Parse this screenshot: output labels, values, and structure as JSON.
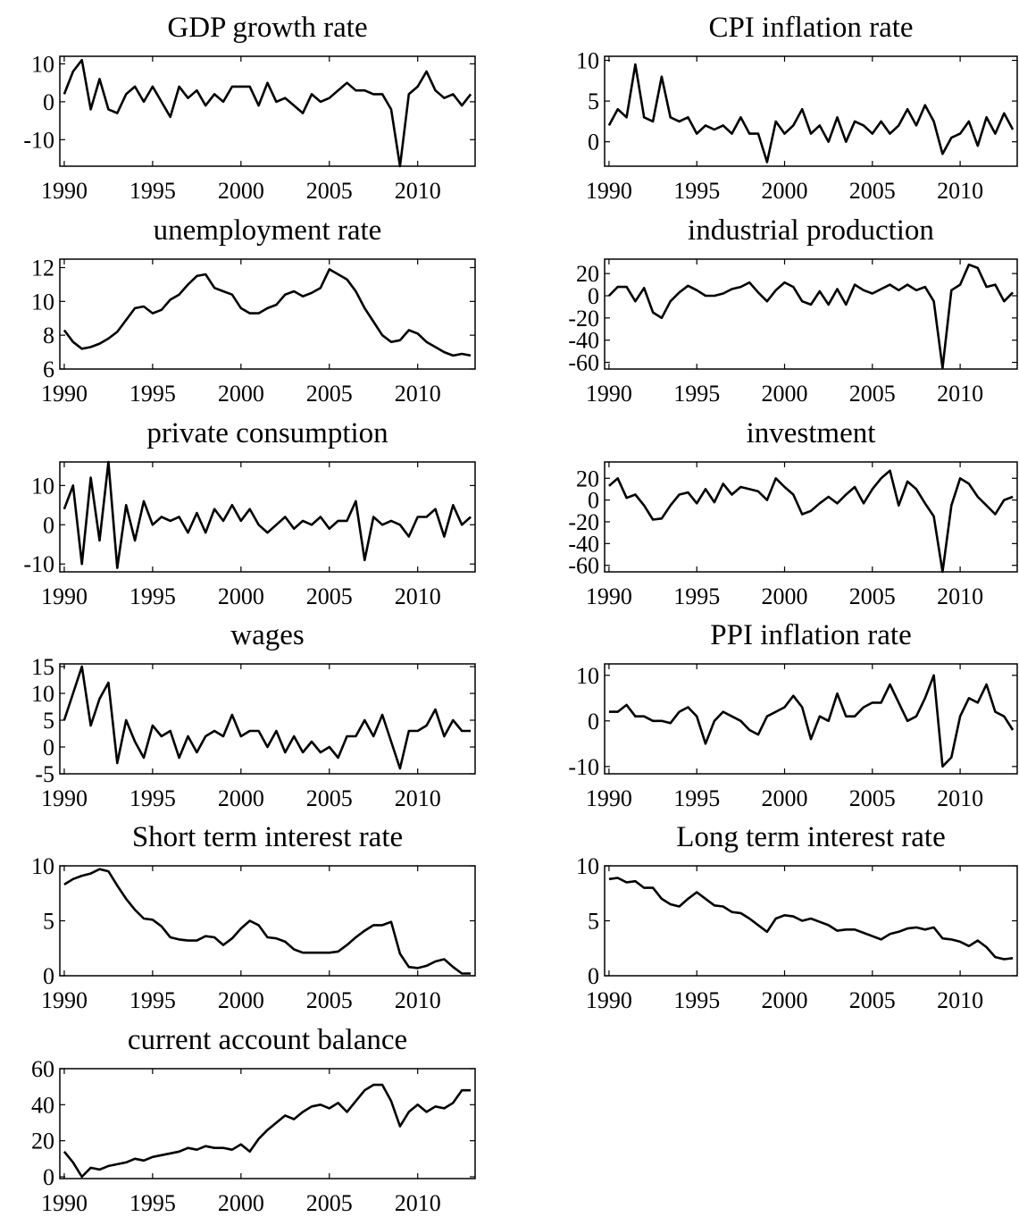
{
  "chart_data": [
    {
      "type": "line",
      "title": "GDP growth rate",
      "color": "#000000",
      "x": [
        1990,
        1990.5,
        1991,
        1991.5,
        1992,
        1992.5,
        1993,
        1993.5,
        1994,
        1994.5,
        1995,
        1995.5,
        1996,
        1996.5,
        1997,
        1997.5,
        1998,
        1998.5,
        1999,
        1999.5,
        2000,
        2000.5,
        2001,
        2001.5,
        2002,
        2002.5,
        2003,
        2003.5,
        2004,
        2004.5,
        2005,
        2005.5,
        2006,
        2006.5,
        2007,
        2007.5,
        2008,
        2008.5,
        2009,
        2009.5,
        2010,
        2010.5,
        2011,
        2011.5,
        2012,
        2012.5,
        2013
      ],
      "values": [
        2,
        8,
        11,
        -2,
        6,
        -2,
        -3,
        2,
        4,
        0,
        4,
        0,
        -4,
        4,
        1,
        3,
        -1,
        2,
        0,
        4,
        4,
        4,
        -1,
        5,
        0,
        1,
        -1,
        -3,
        2,
        0,
        1,
        3,
        5,
        3,
        3,
        2,
        2,
        -2,
        -17,
        2,
        4,
        8,
        3,
        1,
        2,
        -1,
        2
      ],
      "xlim": [
        1989.75,
        2013.25
      ],
      "xticks": [
        1990,
        1995,
        2000,
        2005,
        2010
      ],
      "ylim": [
        -17,
        12
      ],
      "yticks": [
        -10,
        0,
        10
      ]
    },
    {
      "type": "line",
      "title": "CPI inflation rate",
      "color": "#000000",
      "x": [
        1990,
        1990.5,
        1991,
        1991.5,
        1992,
        1992.5,
        1993,
        1993.5,
        1994,
        1994.5,
        1995,
        1995.5,
        1996,
        1996.5,
        1997,
        1997.5,
        1998,
        1998.5,
        1999,
        1999.5,
        2000,
        2000.5,
        2001,
        2001.5,
        2002,
        2002.5,
        2003,
        2003.5,
        2004,
        2004.5,
        2005,
        2005.5,
        2006,
        2006.5,
        2007,
        2007.5,
        2008,
        2008.5,
        2009,
        2009.5,
        2010,
        2010.5,
        2011,
        2011.5,
        2012,
        2012.5,
        2013
      ],
      "values": [
        2,
        4,
        3,
        9.5,
        3,
        2.5,
        8,
        3,
        2.5,
        3,
        1,
        2,
        1.5,
        2,
        1,
        3,
        1,
        1,
        -2.5,
        2.5,
        1,
        2,
        4,
        1,
        2,
        0,
        3,
        0,
        2.5,
        2,
        1,
        2.5,
        1,
        2,
        4,
        2,
        4.5,
        2.5,
        -1.5,
        0.5,
        1,
        2.5,
        -0.5,
        3,
        1,
        3.5,
        1.5
      ],
      "xlim": [
        1989.75,
        2013.25
      ],
      "xticks": [
        1990,
        1995,
        2000,
        2005,
        2010
      ],
      "ylim": [
        -3,
        10.5
      ],
      "yticks": [
        0,
        5,
        10
      ]
    },
    {
      "type": "line",
      "title": "unemployment rate",
      "color": "#000000",
      "x": [
        1990,
        1990.5,
        1991,
        1991.5,
        1992,
        1992.5,
        1993,
        1993.5,
        1994,
        1994.5,
        1995,
        1995.5,
        1996,
        1996.5,
        1997,
        1997.5,
        1998,
        1998.5,
        1999,
        1999.5,
        2000,
        2000.5,
        2001,
        2001.5,
        2002,
        2002.5,
        2003,
        2003.5,
        2004,
        2004.5,
        2005,
        2005.5,
        2006,
        2006.5,
        2007,
        2007.5,
        2008,
        2008.5,
        2009,
        2009.5,
        2010,
        2010.5,
        2011,
        2011.5,
        2012,
        2012.5,
        2013
      ],
      "values": [
        8.3,
        7.6,
        7.2,
        7.3,
        7.5,
        7.8,
        8.2,
        8.9,
        9.6,
        9.7,
        9.3,
        9.5,
        10.1,
        10.4,
        11.0,
        11.5,
        11.6,
        10.8,
        10.6,
        10.4,
        9.6,
        9.3,
        9.3,
        9.6,
        9.8,
        10.4,
        10.6,
        10.3,
        10.5,
        10.8,
        11.9,
        11.6,
        11.3,
        10.6,
        9.6,
        8.8,
        8.0,
        7.6,
        7.7,
        8.3,
        8.1,
        7.6,
        7.3,
        7.0,
        6.8,
        6.9,
        6.8
      ],
      "xlim": [
        1989.75,
        2013.25
      ],
      "xticks": [
        1990,
        1995,
        2000,
        2005,
        2010
      ],
      "ylim": [
        6,
        12.5
      ],
      "yticks": [
        6,
        8,
        10,
        12
      ]
    },
    {
      "type": "line",
      "title": "industrial production",
      "color": "#000000",
      "x": [
        1990,
        1990.5,
        1991,
        1991.5,
        1992,
        1992.5,
        1993,
        1993.5,
        1994,
        1994.5,
        1995,
        1995.5,
        1996,
        1996.5,
        1997,
        1997.5,
        1998,
        1998.5,
        1999,
        1999.5,
        2000,
        2000.5,
        2001,
        2001.5,
        2002,
        2002.5,
        2003,
        2003.5,
        2004,
        2004.5,
        2005,
        2005.5,
        2006,
        2006.5,
        2007,
        2007.5,
        2008,
        2008.5,
        2009,
        2009.5,
        2010,
        2010.5,
        2011,
        2011.5,
        2012,
        2012.5,
        2013
      ],
      "values": [
        0,
        8,
        8,
        -5,
        7,
        -15,
        -20,
        -5,
        3,
        9,
        5,
        0,
        0,
        2,
        6,
        8,
        12,
        3,
        -5,
        5,
        12,
        8,
        -5,
        -8,
        4,
        -8,
        6,
        -8,
        10,
        5,
        2,
        6,
        10,
        5,
        10,
        5,
        8,
        -5,
        -65,
        5,
        10,
        28,
        25,
        8,
        10,
        -5,
        3
      ],
      "xlim": [
        1989.75,
        2013.25
      ],
      "xticks": [
        1990,
        1995,
        2000,
        2005,
        2010
      ],
      "ylim": [
        -66,
        33
      ],
      "yticks": [
        -60,
        -40,
        -20,
        0,
        20
      ]
    },
    {
      "type": "line",
      "title": "private consumption",
      "color": "#000000",
      "x": [
        1990,
        1990.5,
        1991,
        1991.5,
        1992,
        1992.5,
        1993,
        1993.5,
        1994,
        1994.5,
        1995,
        1995.5,
        1996,
        1996.5,
        1997,
        1997.5,
        1998,
        1998.5,
        1999,
        1999.5,
        2000,
        2000.5,
        2001,
        2001.5,
        2002,
        2002.5,
        2003,
        2003.5,
        2004,
        2004.5,
        2005,
        2005.5,
        2006,
        2006.5,
        2007,
        2007.5,
        2008,
        2008.5,
        2009,
        2009.5,
        2010,
        2010.5,
        2011,
        2011.5,
        2012,
        2012.5,
        2013
      ],
      "values": [
        4,
        10,
        -10,
        12,
        -4,
        16,
        -11,
        5,
        -4,
        6,
        0,
        2,
        1,
        2,
        -2,
        3,
        -2,
        4,
        1,
        5,
        1,
        4,
        0,
        -2,
        0,
        2,
        -1,
        1,
        0,
        2,
        -1,
        1,
        1,
        6,
        -9,
        2,
        0,
        1,
        0,
        -3,
        2,
        2,
        4,
        -3,
        5,
        0,
        2
      ],
      "xlim": [
        1989.75,
        2013.25
      ],
      "xticks": [
        1990,
        1995,
        2000,
        2005,
        2010
      ],
      "ylim": [
        -12,
        16
      ],
      "yticks": [
        -10,
        0,
        10
      ]
    },
    {
      "type": "line",
      "title": "investment",
      "color": "#000000",
      "x": [
        1990,
        1990.5,
        1991,
        1991.5,
        1992,
        1992.5,
        1993,
        1993.5,
        1994,
        1994.5,
        1995,
        1995.5,
        1996,
        1996.5,
        1997,
        1997.5,
        1998,
        1998.5,
        1999,
        1999.5,
        2000,
        2000.5,
        2001,
        2001.5,
        2002,
        2002.5,
        2003,
        2003.5,
        2004,
        2004.5,
        2005,
        2005.5,
        2006,
        2006.5,
        2007,
        2007.5,
        2008,
        2008.5,
        2009,
        2009.5,
        2010,
        2010.5,
        2011,
        2011.5,
        2012,
        2012.5,
        2013
      ],
      "values": [
        13,
        20,
        2,
        5,
        -5,
        -18,
        -17,
        -5,
        5,
        7,
        -3,
        10,
        -2,
        15,
        5,
        12,
        10,
        8,
        0,
        20,
        12,
        5,
        -13,
        -10,
        -3,
        3,
        -3,
        5,
        12,
        -3,
        10,
        20,
        27,
        -5,
        17,
        10,
        -3,
        -15,
        -66,
        -5,
        20,
        15,
        3,
        -5,
        -13,
        0,
        3
      ],
      "xlim": [
        1989.75,
        2013.25
      ],
      "xticks": [
        1990,
        1995,
        2000,
        2005,
        2010
      ],
      "ylim": [
        -66,
        35
      ],
      "yticks": [
        -60,
        -40,
        -20,
        0,
        20
      ]
    },
    {
      "type": "line",
      "title": "wages",
      "color": "#000000",
      "x": [
        1990,
        1990.5,
        1991,
        1991.5,
        1992,
        1992.5,
        1993,
        1993.5,
        1994,
        1994.5,
        1995,
        1995.5,
        1996,
        1996.5,
        1997,
        1997.5,
        1998,
        1998.5,
        1999,
        1999.5,
        2000,
        2000.5,
        2001,
        2001.5,
        2002,
        2002.5,
        2003,
        2003.5,
        2004,
        2004.5,
        2005,
        2005.5,
        2006,
        2006.5,
        2007,
        2007.5,
        2008,
        2008.5,
        2009,
        2009.5,
        2010,
        2010.5,
        2011,
        2011.5,
        2012,
        2012.5,
        2013
      ],
      "values": [
        5,
        10,
        15,
        4,
        9,
        12,
        -3,
        5,
        1,
        -2,
        4,
        2,
        3,
        -2,
        2,
        -1,
        2,
        3,
        2,
        6,
        2,
        3,
        3,
        0,
        3,
        -1,
        2,
        -1,
        1,
        -1,
        0,
        -2,
        2,
        2,
        5,
        2,
        6,
        1,
        -4,
        3,
        3,
        4,
        7,
        2,
        5,
        3,
        3
      ],
      "xlim": [
        1989.75,
        2013.25
      ],
      "xticks": [
        1990,
        1995,
        2000,
        2005,
        2010
      ],
      "ylim": [
        -5,
        15.5
      ],
      "yticks": [
        -5,
        0,
        5,
        10,
        15
      ]
    },
    {
      "type": "line",
      "title": "PPI inflation rate",
      "color": "#000000",
      "x": [
        1990,
        1990.5,
        1991,
        1991.5,
        1992,
        1992.5,
        1993,
        1993.5,
        1994,
        1994.5,
        1995,
        1995.5,
        1996,
        1996.5,
        1997,
        1997.5,
        1998,
        1998.5,
        1999,
        1999.5,
        2000,
        2000.5,
        2001,
        2001.5,
        2002,
        2002.5,
        2003,
        2003.5,
        2004,
        2004.5,
        2005,
        2005.5,
        2006,
        2006.5,
        2007,
        2007.5,
        2008,
        2008.5,
        2009,
        2009.5,
        2010,
        2010.5,
        2011,
        2011.5,
        2012,
        2012.5,
        2013
      ],
      "values": [
        2,
        2,
        3.5,
        1,
        1,
        0,
        0,
        -0.5,
        2,
        3,
        1,
        -5,
        0,
        2,
        1,
        0,
        -2,
        -3,
        1,
        2,
        3,
        5.5,
        3,
        -4,
        1,
        0,
        6,
        1,
        1,
        3,
        4,
        4,
        8,
        4,
        0,
        1,
        5,
        10,
        -10,
        -8,
        1,
        5,
        4,
        8,
        2,
        1,
        -2
      ],
      "xlim": [
        1989.75,
        2013.25
      ],
      "xticks": [
        1990,
        1995,
        2000,
        2005,
        2010
      ],
      "ylim": [
        -11.6,
        12.5
      ],
      "yticks": [
        -10,
        0,
        10
      ]
    },
    {
      "type": "line",
      "title": "Short term interest rate",
      "color": "#000000",
      "x": [
        1990,
        1990.5,
        1991,
        1991.5,
        1992,
        1992.5,
        1993,
        1993.5,
        1994,
        1994.5,
        1995,
        1995.5,
        1996,
        1996.5,
        1997,
        1997.5,
        1998,
        1998.5,
        1999,
        1999.5,
        2000,
        2000.5,
        2001,
        2001.5,
        2002,
        2002.5,
        2003,
        2003.5,
        2004,
        2004.5,
        2005,
        2005.5,
        2006,
        2006.5,
        2007,
        2007.5,
        2008,
        2008.5,
        2009,
        2009.5,
        2010,
        2010.5,
        2011,
        2011.5,
        2012,
        2012.5,
        2013
      ],
      "values": [
        8.3,
        8.8,
        9.1,
        9.3,
        9.7,
        9.5,
        8.2,
        7.0,
        6.0,
        5.2,
        5.1,
        4.5,
        3.5,
        3.3,
        3.2,
        3.2,
        3.6,
        3.5,
        2.8,
        3.4,
        4.3,
        5.0,
        4.6,
        3.5,
        3.4,
        3.1,
        2.4,
        2.1,
        2.1,
        2.1,
        2.1,
        2.2,
        2.8,
        3.5,
        4.1,
        4.6,
        4.6,
        4.9,
        2.0,
        0.8,
        0.7,
        0.9,
        1.3,
        1.5,
        0.8,
        0.2,
        0.2
      ],
      "xlim": [
        1989.75,
        2013.25
      ],
      "xticks": [
        1990,
        1995,
        2000,
        2005,
        2010
      ],
      "ylim": [
        0,
        10
      ],
      "yticks": [
        0,
        5,
        10
      ]
    },
    {
      "type": "line",
      "title": "Long term interest rate",
      "color": "#000000",
      "x": [
        1990,
        1990.5,
        1991,
        1991.5,
        1992,
        1992.5,
        1993,
        1993.5,
        1994,
        1994.5,
        1995,
        1995.5,
        1996,
        1996.5,
        1997,
        1997.5,
        1998,
        1998.5,
        1999,
        1999.5,
        2000,
        2000.5,
        2001,
        2001.5,
        2002,
        2002.5,
        2003,
        2003.5,
        2004,
        2004.5,
        2005,
        2005.5,
        2006,
        2006.5,
        2007,
        2007.5,
        2008,
        2008.5,
        2009,
        2009.5,
        2010,
        2010.5,
        2011,
        2011.5,
        2012,
        2012.5,
        2013
      ],
      "values": [
        8.8,
        8.9,
        8.5,
        8.6,
        8.0,
        8.0,
        7.0,
        6.5,
        6.3,
        7.0,
        7.6,
        7.0,
        6.4,
        6.3,
        5.8,
        5.7,
        5.2,
        4.6,
        4.0,
        5.2,
        5.5,
        5.4,
        5.0,
        5.2,
        4.9,
        4.6,
        4.1,
        4.2,
        4.2,
        3.9,
        3.6,
        3.3,
        3.8,
        4.0,
        4.3,
        4.4,
        4.2,
        4.4,
        3.4,
        3.3,
        3.1,
        2.7,
        3.2,
        2.6,
        1.7,
        1.5,
        1.6
      ],
      "xlim": [
        1989.75,
        2013.25
      ],
      "xticks": [
        1990,
        1995,
        2000,
        2005,
        2010
      ],
      "ylim": [
        0,
        10
      ],
      "yticks": [
        0,
        5,
        10
      ]
    },
    {
      "type": "line",
      "title": "current account balance",
      "color": "#000000",
      "x": [
        1990,
        1990.5,
        1991,
        1991.5,
        1992,
        1992.5,
        1993,
        1993.5,
        1994,
        1994.5,
        1995,
        1995.5,
        1996,
        1996.5,
        1997,
        1997.5,
        1998,
        1998.5,
        1999,
        1999.5,
        2000,
        2000.5,
        2001,
        2001.5,
        2002,
        2002.5,
        2003,
        2003.5,
        2004,
        2004.5,
        2005,
        2005.5,
        2006,
        2006.5,
        2007,
        2007.5,
        2008,
        2008.5,
        2009,
        2009.5,
        2010,
        2010.5,
        2011,
        2011.5,
        2012,
        2012.5,
        2013
      ],
      "values": [
        14,
        8,
        0,
        5,
        4,
        6,
        7,
        8,
        10,
        9,
        11,
        12,
        13,
        14,
        16,
        15,
        17,
        16,
        16,
        15,
        18,
        14,
        21,
        26,
        30,
        34,
        32,
        36,
        39,
        40,
        38,
        41,
        36,
        42,
        48,
        51,
        51,
        42,
        28,
        36,
        40,
        36,
        39,
        38,
        41,
        48,
        48
      ],
      "xlim": [
        1989.75,
        2013.25
      ],
      "xticks": [
        1990,
        1995,
        2000,
        2005,
        2010
      ],
      "ylim": [
        -1,
        60
      ],
      "yticks": [
        0,
        20,
        40,
        60
      ]
    }
  ]
}
